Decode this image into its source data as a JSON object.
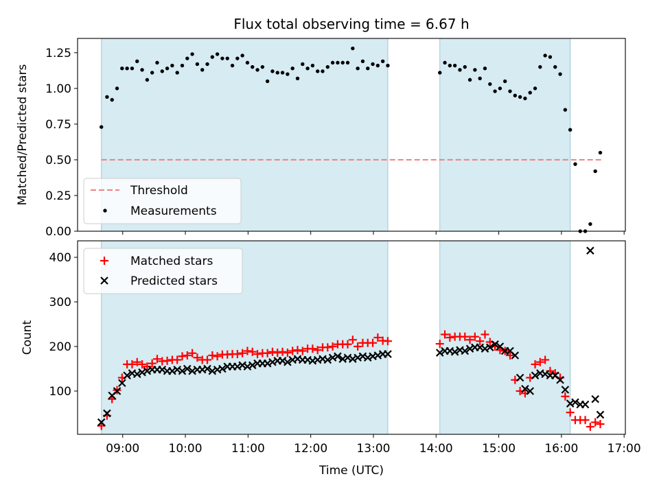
{
  "figure": {
    "title": "Flux total observing time = 6.67 h"
  },
  "chart_data": [
    {
      "type": "scatter",
      "panel": "top",
      "title": "Flux total observing time = 6.67 h",
      "ylabel": "Matched/Predicted stars",
      "xlim": [
        8.28,
        17.02
      ],
      "ylim": [
        0.0,
        1.35
      ],
      "yticks": [
        0.0,
        0.25,
        0.5,
        0.75,
        1.0,
        1.25
      ],
      "ytick_labels": [
        "0.00",
        "0.25",
        "0.50",
        "0.75",
        "1.00",
        "1.25"
      ],
      "xticks": [
        9,
        10,
        11,
        12,
        13,
        14,
        15,
        16,
        17
      ],
      "shaded_intervals": [
        [
          8.66,
          13.23
        ],
        [
          14.06,
          16.14
        ]
      ],
      "threshold": {
        "name": "Threshold",
        "value": 0.5,
        "x_range": [
          8.66,
          16.65
        ],
        "color": "#f08080"
      },
      "legend": {
        "placement": "lower-left",
        "entries": [
          "Threshold",
          "Measurements"
        ]
      },
      "series": [
        {
          "name": "Measurements",
          "color": "#000000",
          "x": [
            8.66,
            8.75,
            8.83,
            8.91,
            8.99,
            9.07,
            9.15,
            9.23,
            9.31,
            9.39,
            9.47,
            9.55,
            9.63,
            9.71,
            9.79,
            9.87,
            9.95,
            10.03,
            10.11,
            10.19,
            10.27,
            10.35,
            10.43,
            10.51,
            10.59,
            10.67,
            10.75,
            10.83,
            10.91,
            10.99,
            11.07,
            11.15,
            11.23,
            11.31,
            11.39,
            11.47,
            11.55,
            11.63,
            11.71,
            11.79,
            11.87,
            11.95,
            12.03,
            12.11,
            12.19,
            12.27,
            12.35,
            12.43,
            12.51,
            12.59,
            12.67,
            12.75,
            12.83,
            12.91,
            12.99,
            13.07,
            13.15,
            13.23,
            14.06,
            14.14,
            14.22,
            14.3,
            14.38,
            14.46,
            14.54,
            14.62,
            14.7,
            14.78,
            14.86,
            14.94,
            15.02,
            15.1,
            15.18,
            15.26,
            15.34,
            15.42,
            15.5,
            15.58,
            15.66,
            15.74,
            15.82,
            15.9,
            15.98,
            16.06,
            16.14,
            16.22,
            16.3,
            16.38,
            16.46,
            16.54,
            16.62
          ],
          "y": [
            0.73,
            0.94,
            0.92,
            1.0,
            1.14,
            1.14,
            1.14,
            1.19,
            1.13,
            1.06,
            1.11,
            1.18,
            1.12,
            1.14,
            1.16,
            1.11,
            1.16,
            1.21,
            1.24,
            1.17,
            1.13,
            1.17,
            1.22,
            1.24,
            1.21,
            1.21,
            1.16,
            1.21,
            1.23,
            1.18,
            1.15,
            1.13,
            1.15,
            1.05,
            1.12,
            1.11,
            1.11,
            1.1,
            1.14,
            1.07,
            1.17,
            1.14,
            1.16,
            1.12,
            1.12,
            1.15,
            1.18,
            1.18,
            1.18,
            1.18,
            1.28,
            1.14,
            1.19,
            1.14,
            1.17,
            1.16,
            1.19,
            1.16,
            1.11,
            1.18,
            1.16,
            1.16,
            1.13,
            1.15,
            1.06,
            1.13,
            1.07,
            1.14,
            1.03,
            0.98,
            1.0,
            1.05,
            0.98,
            0.95,
            0.94,
            0.93,
            0.97,
            1.0,
            1.15,
            1.23,
            1.22,
            1.15,
            1.1,
            0.85,
            0.71,
            0.47,
            0.0,
            0.0,
            0.05,
            0.42,
            0.55
          ]
        }
      ]
    },
    {
      "type": "scatter",
      "panel": "bottom",
      "xlabel": "Time (UTC)",
      "ylabel": "Count",
      "xlim": [
        8.28,
        17.02
      ],
      "ylim": [
        3,
        437
      ],
      "yticks": [
        100,
        200,
        300,
        400
      ],
      "xticks": [
        9,
        10,
        11,
        12,
        13,
        14,
        15,
        16,
        17
      ],
      "xtick_labels": [
        "09:00",
        "10:00",
        "11:00",
        "12:00",
        "13:00",
        "14:00",
        "15:00",
        "16:00",
        "17:00"
      ],
      "shaded_intervals": [
        [
          8.66,
          13.23
        ],
        [
          14.06,
          16.14
        ]
      ],
      "legend": {
        "placement": "upper-left",
        "entries": [
          "Matched stars",
          "Predicted stars"
        ]
      },
      "series": [
        {
          "name": "Matched stars",
          "marker": "plus",
          "color": "#ff0000",
          "x": [
            8.66,
            8.75,
            8.83,
            8.91,
            8.99,
            9.07,
            9.15,
            9.23,
            9.31,
            9.39,
            9.47,
            9.55,
            9.63,
            9.71,
            9.79,
            9.87,
            9.95,
            10.03,
            10.11,
            10.19,
            10.27,
            10.35,
            10.43,
            10.51,
            10.59,
            10.67,
            10.75,
            10.83,
            10.91,
            10.99,
            11.07,
            11.15,
            11.23,
            11.31,
            11.39,
            11.47,
            11.55,
            11.63,
            11.71,
            11.79,
            11.87,
            11.95,
            12.03,
            12.11,
            12.19,
            12.27,
            12.35,
            12.43,
            12.51,
            12.59,
            12.67,
            12.75,
            12.83,
            12.91,
            12.99,
            13.07,
            13.15,
            13.23,
            14.06,
            14.14,
            14.22,
            14.3,
            14.38,
            14.46,
            14.54,
            14.62,
            14.7,
            14.78,
            14.86,
            14.94,
            15.02,
            15.1,
            15.18,
            15.26,
            15.34,
            15.42,
            15.5,
            15.58,
            15.66,
            15.74,
            15.82,
            15.9,
            15.98,
            16.06,
            16.14,
            16.22,
            16.3,
            16.38,
            16.46,
            16.54,
            16.62
          ],
          "y": [
            22,
            45,
            82,
            102,
            130,
            160,
            160,
            165,
            160,
            155,
            162,
            172,
            167,
            168,
            170,
            170,
            178,
            180,
            185,
            175,
            170,
            170,
            180,
            178,
            182,
            182,
            183,
            183,
            185,
            190,
            188,
            183,
            185,
            185,
            188,
            186,
            188,
            186,
            190,
            192,
            190,
            195,
            195,
            192,
            198,
            198,
            200,
            205,
            205,
            205,
            215,
            200,
            208,
            208,
            208,
            220,
            213,
            212,
            206,
            227,
            220,
            222,
            222,
            222,
            215,
            222,
            212,
            227,
            210,
            200,
            192,
            190,
            180,
            125,
            100,
            95,
            130,
            160,
            165,
            170,
            145,
            140,
            130,
            88,
            52,
            35,
            35,
            35,
            20,
            30,
            26
          ]
        },
        {
          "name": "Predicted stars",
          "marker": "x",
          "color": "#000000",
          "x": [
            8.66,
            8.75,
            8.83,
            8.91,
            8.99,
            9.07,
            9.15,
            9.23,
            9.31,
            9.39,
            9.47,
            9.55,
            9.63,
            9.71,
            9.79,
            9.87,
            9.95,
            10.03,
            10.11,
            10.19,
            10.27,
            10.35,
            10.43,
            10.51,
            10.59,
            10.67,
            10.75,
            10.83,
            10.91,
            10.99,
            11.07,
            11.15,
            11.23,
            11.31,
            11.39,
            11.47,
            11.55,
            11.63,
            11.71,
            11.79,
            11.87,
            11.95,
            12.03,
            12.11,
            12.19,
            12.27,
            12.35,
            12.43,
            12.51,
            12.59,
            12.67,
            12.75,
            12.83,
            12.91,
            12.99,
            13.07,
            13.15,
            13.23,
            14.06,
            14.14,
            14.22,
            14.3,
            14.38,
            14.46,
            14.54,
            14.62,
            14.7,
            14.78,
            14.86,
            14.94,
            15.02,
            15.1,
            15.18,
            15.26,
            15.34,
            15.42,
            15.5,
            15.58,
            15.66,
            15.74,
            15.82,
            15.9,
            15.98,
            16.06,
            16.14,
            16.22,
            16.3,
            16.38,
            16.46,
            16.54,
            16.62
          ],
          "y": [
            30,
            50,
            90,
            100,
            118,
            135,
            140,
            138,
            142,
            145,
            148,
            148,
            148,
            145,
            145,
            148,
            145,
            150,
            145,
            148,
            148,
            150,
            145,
            148,
            150,
            155,
            155,
            155,
            158,
            155,
            158,
            162,
            162,
            162,
            165,
            168,
            168,
            165,
            170,
            172,
            170,
            170,
            168,
            170,
            172,
            170,
            175,
            178,
            172,
            175,
            172,
            175,
            178,
            175,
            178,
            180,
            183,
            183,
            186,
            190,
            190,
            188,
            192,
            190,
            195,
            198,
            198,
            195,
            198,
            205,
            200,
            190,
            190,
            180,
            130,
            105,
            100,
            135,
            140,
            138,
            135,
            135,
            125,
            103,
            72,
            75,
            70,
            70,
            415,
            82,
            47
          ]
        }
      ]
    }
  ]
}
